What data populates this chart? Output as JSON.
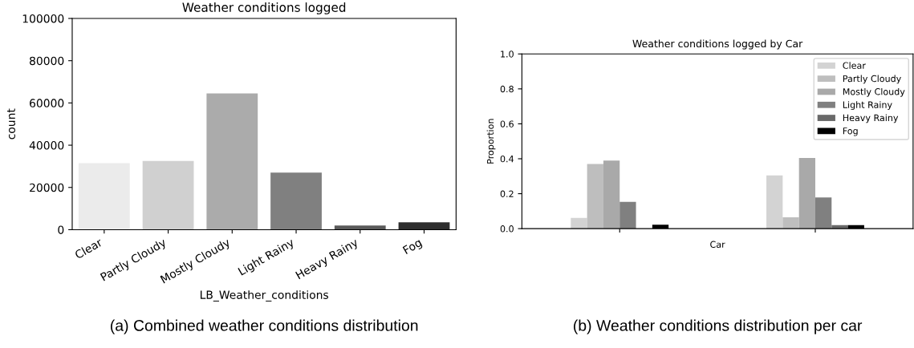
{
  "chart_data": [
    {
      "type": "bar",
      "title": "Weather conditions logged",
      "xlabel": "LB_Weather_conditions",
      "ylabel": "count",
      "categories": [
        "Clear",
        "Partly Cloudy",
        "Mostly Cloudy",
        "Light Rainy",
        "Heavy Rainy",
        "Fog"
      ],
      "values": [
        31500,
        32500,
        64500,
        27000,
        2000,
        3500
      ],
      "colors": [
        "#ebebeb",
        "#d0d0d0",
        "#ababab",
        "#808080",
        "#5a5a5a",
        "#2e2e2e"
      ],
      "ylim": [
        0,
        100000
      ],
      "yticks": [
        0,
        20000,
        40000,
        60000,
        80000,
        100000
      ],
      "grid": false,
      "annotations": [
        "(a) Combined weather conditions distribution"
      ]
    },
    {
      "type": "bar",
      "title": "Weather conditions logged by Car",
      "xlabel": "Car",
      "ylabel": "Proportion",
      "categories": [
        null,
        null
      ],
      "series": [
        {
          "name": "Clear",
          "color": "#d3d3d3",
          "values": [
            0.062,
            0.305
          ]
        },
        {
          "name": "Partly Cloudy",
          "color": "#bebebe",
          "values": [
            0.37,
            0.065
          ]
        },
        {
          "name": "Mostly Cloudy",
          "color": "#a9a9a9",
          "values": [
            0.39,
            0.405
          ]
        },
        {
          "name": "Light Rainy",
          "color": "#808080",
          "values": [
            0.153,
            0.178
          ]
        },
        {
          "name": "Heavy Rainy",
          "color": "#696969",
          "values": [
            0.0,
            0.02
          ]
        },
        {
          "name": "Fog",
          "color": "#000000",
          "values": [
            0.022,
            0.02
          ]
        }
      ],
      "ylim": [
        0,
        1.0
      ],
      "yticks": [
        {
          "value": 0,
          "label": "0.0"
        },
        0.2,
        0.4,
        0.6,
        0.8,
        {
          "value": 1,
          "label": "1.0"
        }
      ],
      "legend": "top right",
      "grid": false,
      "annotations": [
        "(b) Weather conditions distribution per car"
      ]
    }
  ]
}
